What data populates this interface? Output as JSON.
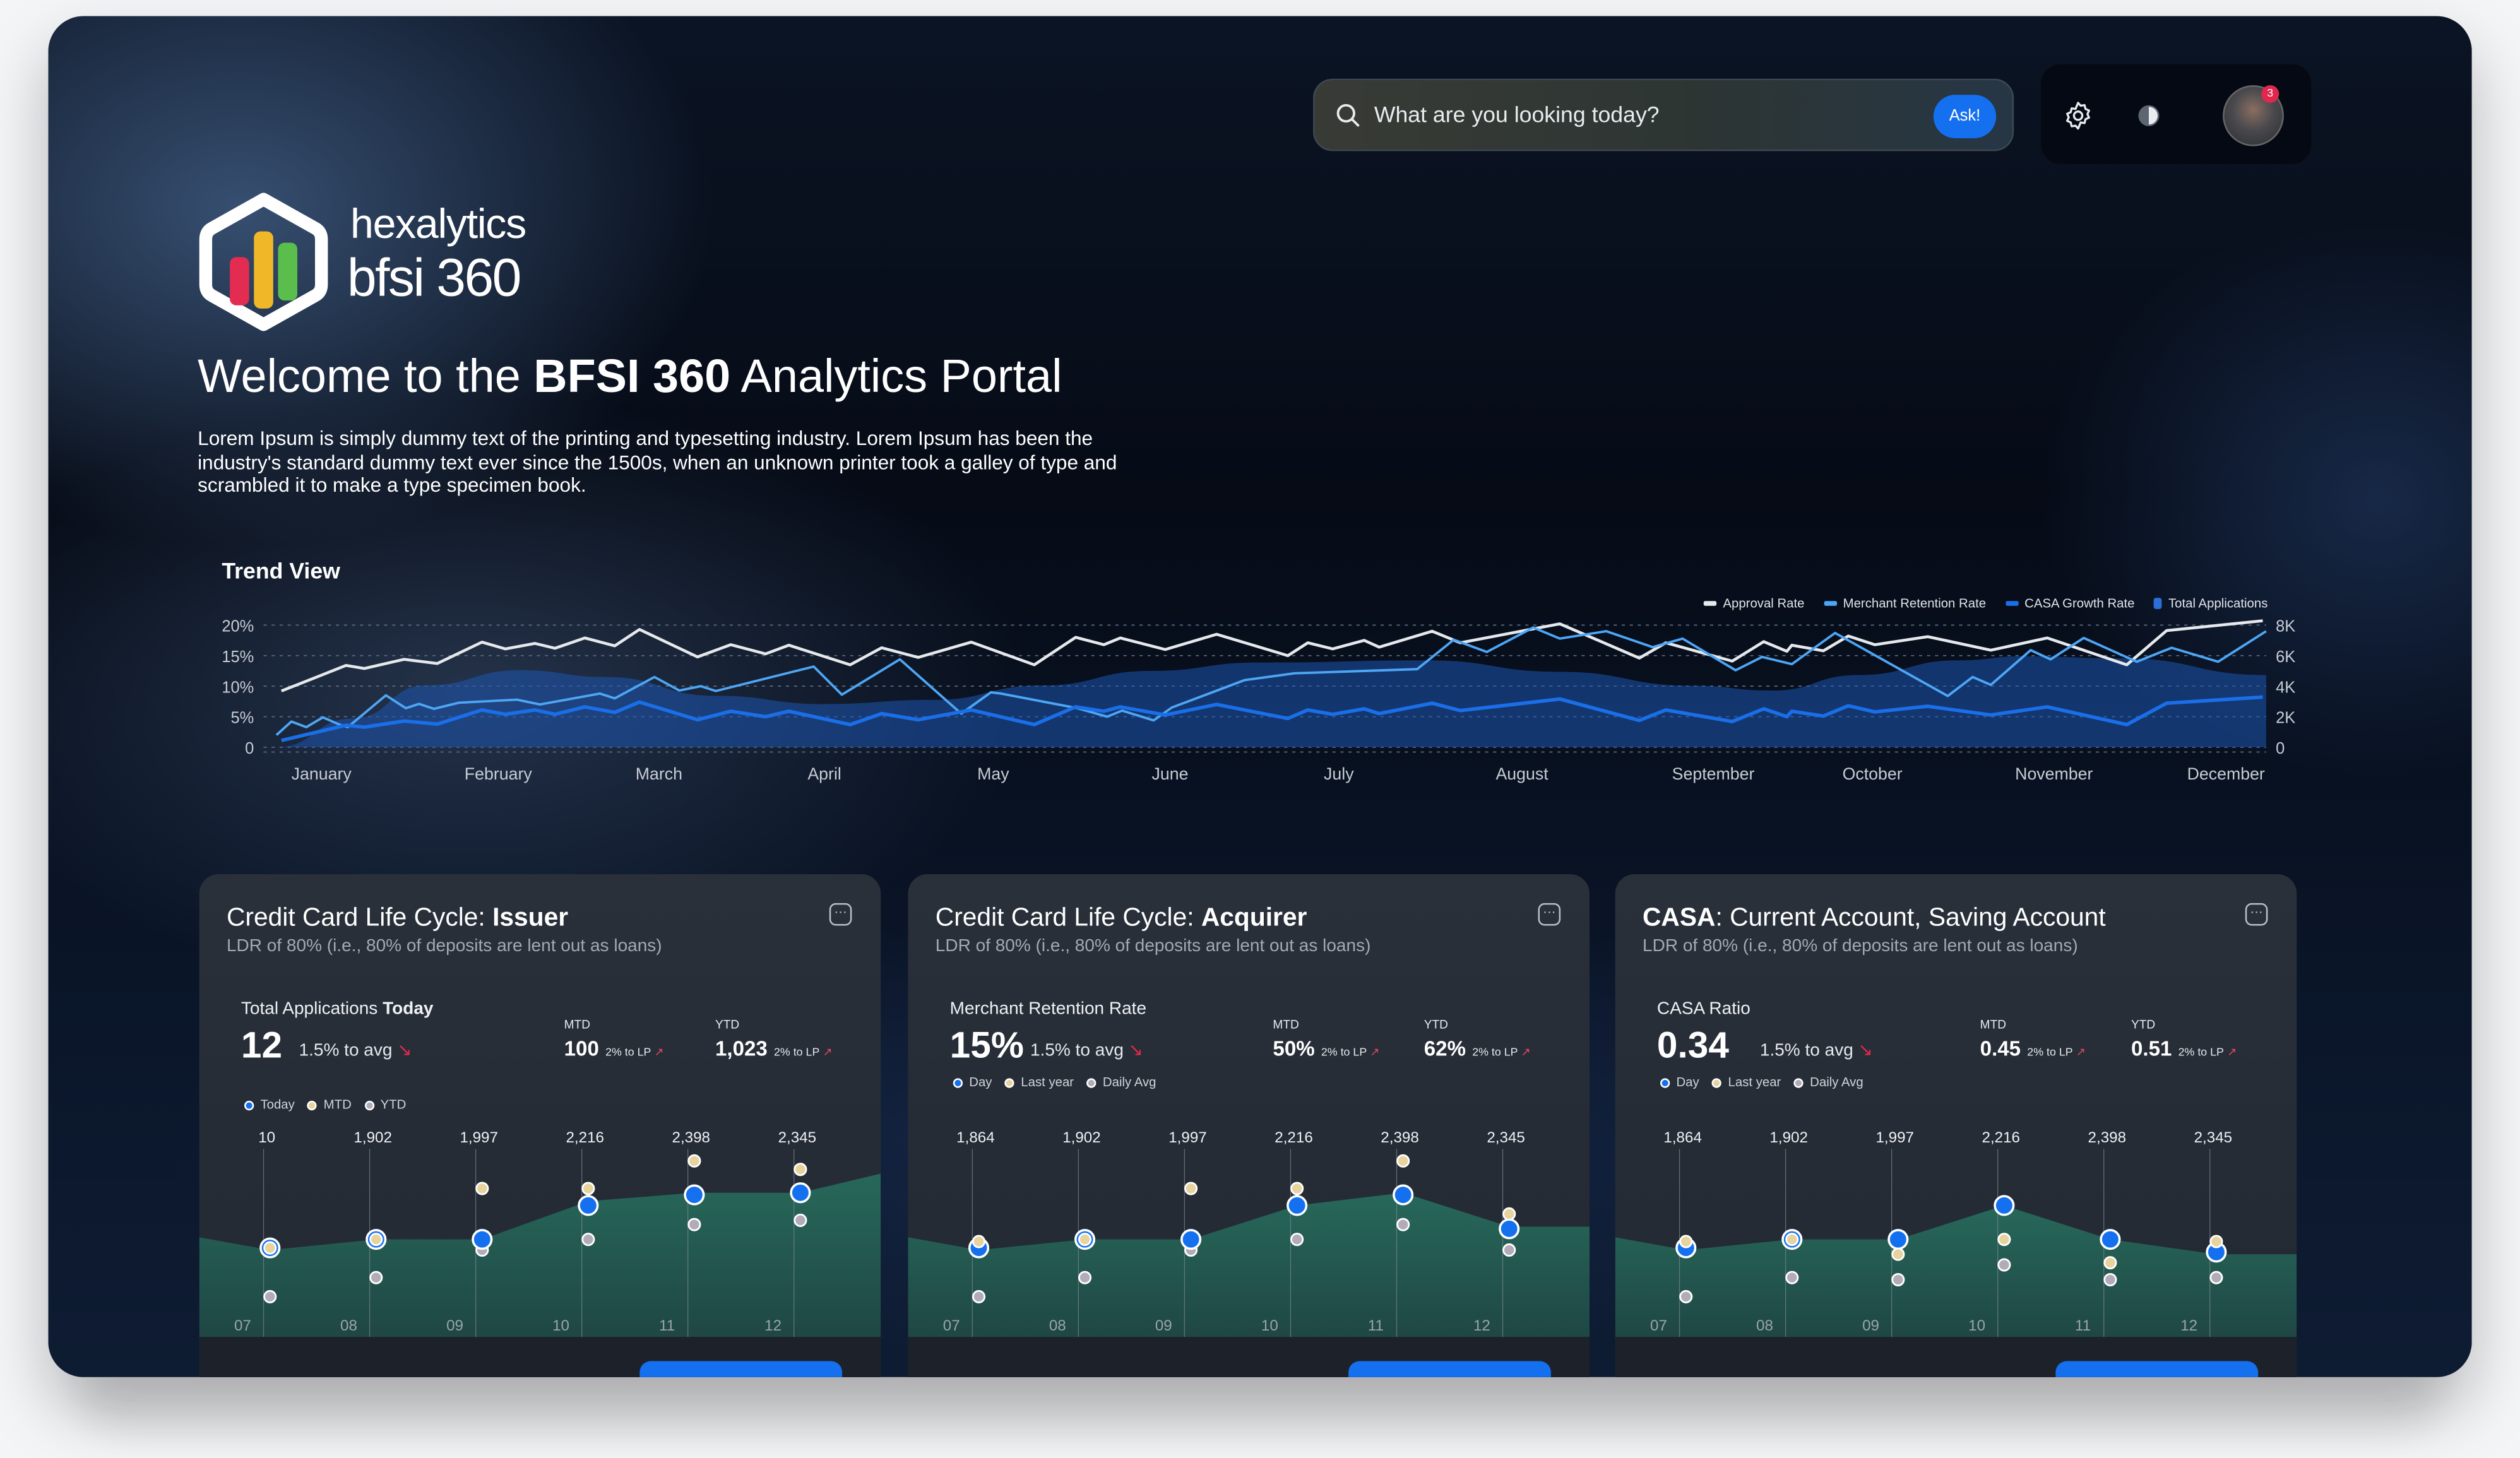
{
  "header": {
    "search_placeholder": "What are you looking today?",
    "ask_label": "Ask!",
    "notification_count": "3",
    "icons": [
      "search-icon",
      "gear-icon",
      "contrast-icon",
      "user-avatar"
    ]
  },
  "brand": {
    "line1": "hexalytics",
    "line2": "bfsi 360"
  },
  "hero": {
    "title_prefix": "Welcome to the ",
    "title_bold": "BFSI 360",
    "title_suffix": " Analytics Portal",
    "description": "Lorem Ipsum is simply dummy text of the printing and typesetting industry. Lorem Ipsum has been the industry's standard dummy text ever since the 1500s, when an unknown printer took a galley of type and scrambled it to make a type specimen book."
  },
  "trend": {
    "title": "Trend View"
  },
  "colors": {
    "accent": "#1570ef",
    "approval": "#e6e9ec",
    "merchant": "#4da6f5",
    "casa": "#1a6fe8",
    "total": "#1e4f9a",
    "negative": "#e0284e",
    "card_area": "#245d50",
    "dot_mtd": "#e7d39d",
    "dot_ytd": "#b2acb8"
  },
  "chart_data": {
    "type": "line",
    "title": "Trend View",
    "x_labels": [
      "January",
      "February",
      "March",
      "April",
      "May",
      "June",
      "July",
      "August",
      "September",
      "October",
      "November",
      "December"
    ],
    "x_unit": "month index (0 = start of January, 12 = end of December)",
    "xlim": [
      0,
      12
    ],
    "y_left": {
      "ticks": [
        "20%",
        "15%",
        "10%",
        "5%",
        "0"
      ],
      "lim": [
        0,
        20
      ],
      "unit": "%"
    },
    "y_right": {
      "ticks": [
        "8K",
        "6K",
        "4K",
        "2K",
        "0"
      ],
      "lim": [
        0,
        8
      ],
      "unit": "K"
    },
    "grid": true,
    "legend_position": "top-right",
    "legend": [
      "Approval Rate",
      "Merchant Retention Rate",
      "CASA Growth Rate",
      "Total Applications"
    ],
    "series": [
      {
        "name": "Approval Rate",
        "type": "line",
        "axis": "left",
        "points": [
          [
            0.03,
            9.2
          ],
          [
            0.42,
            13.4
          ],
          [
            0.53,
            12.9
          ],
          [
            0.77,
            14.4
          ],
          [
            0.97,
            13.7
          ],
          [
            1.24,
            17.2
          ],
          [
            1.38,
            16.1
          ],
          [
            1.56,
            17.0
          ],
          [
            1.68,
            16.2
          ],
          [
            1.86,
            17.9
          ],
          [
            2.04,
            16.6
          ],
          [
            2.19,
            19.3
          ],
          [
            2.54,
            14.8
          ],
          [
            2.74,
            16.8
          ],
          [
            2.95,
            15.3
          ],
          [
            3.09,
            16.7
          ],
          [
            3.46,
            13.5
          ],
          [
            3.65,
            16.3
          ],
          [
            3.87,
            14.7
          ],
          [
            4.19,
            17.2
          ],
          [
            4.57,
            13.5
          ],
          [
            4.82,
            18.0
          ],
          [
            4.99,
            16.8
          ],
          [
            5.09,
            17.9
          ],
          [
            5.36,
            16.0
          ],
          [
            5.67,
            18.5
          ],
          [
            6.1,
            15.0
          ],
          [
            6.22,
            17.1
          ],
          [
            6.37,
            16.1
          ],
          [
            6.56,
            17.5
          ],
          [
            6.65,
            16.4
          ],
          [
            6.97,
            19.0
          ],
          [
            7.14,
            17.1
          ],
          [
            7.74,
            20.2
          ],
          [
            8.22,
            14.6
          ],
          [
            8.38,
            17.1
          ],
          [
            8.78,
            14.1
          ],
          [
            8.97,
            17.3
          ],
          [
            9.11,
            15.7
          ],
          [
            9.14,
            16.7
          ],
          [
            9.33,
            15.8
          ],
          [
            9.48,
            18.2
          ],
          [
            9.64,
            16.8
          ],
          [
            9.96,
            18.1
          ],
          [
            10.34,
            15.9
          ],
          [
            10.68,
            17.9
          ],
          [
            11.16,
            13.5
          ],
          [
            11.4,
            19.1
          ],
          [
            11.98,
            20.7
          ]
        ]
      },
      {
        "name": "Merchant Retention Rate",
        "type": "line",
        "axis": "left",
        "points": [
          [
            0.0,
            2.0
          ],
          [
            0.09,
            4.2
          ],
          [
            0.18,
            3.3
          ],
          [
            0.28,
            4.9
          ],
          [
            0.38,
            3.7
          ],
          [
            0.43,
            3.3
          ],
          [
            0.66,
            8.5
          ],
          [
            0.78,
            6.4
          ],
          [
            0.86,
            7.1
          ],
          [
            0.95,
            6.3
          ],
          [
            1.1,
            7.3
          ],
          [
            1.45,
            7.8
          ],
          [
            1.59,
            7.0
          ],
          [
            1.95,
            8.8
          ],
          [
            2.04,
            8.0
          ],
          [
            2.28,
            11.5
          ],
          [
            2.43,
            9.3
          ],
          [
            2.56,
            10.0
          ],
          [
            2.65,
            9.2
          ],
          [
            3.24,
            13.2
          ],
          [
            3.41,
            8.6
          ],
          [
            3.76,
            14.4
          ],
          [
            4.13,
            5.5
          ],
          [
            4.31,
            9.0
          ],
          [
            4.37,
            8.8
          ],
          [
            4.83,
            6.4
          ],
          [
            5.01,
            5.0
          ],
          [
            5.1,
            6.0
          ],
          [
            5.29,
            4.4
          ],
          [
            5.4,
            6.5
          ],
          [
            5.84,
            11.0
          ],
          [
            6.14,
            12.1
          ],
          [
            6.88,
            12.8
          ],
          [
            7.1,
            17.6
          ],
          [
            7.3,
            15.6
          ],
          [
            7.58,
            19.6
          ],
          [
            7.74,
            17.8
          ],
          [
            8.02,
            19.0
          ],
          [
            8.3,
            16.4
          ],
          [
            8.48,
            17.8
          ],
          [
            8.8,
            12.6
          ],
          [
            8.96,
            14.8
          ],
          [
            9.14,
            13.6
          ],
          [
            9.4,
            18.7
          ],
          [
            10.08,
            8.4
          ],
          [
            10.23,
            11.5
          ],
          [
            10.34,
            10.2
          ],
          [
            10.58,
            15.9
          ],
          [
            10.7,
            14.4
          ],
          [
            10.9,
            17.9
          ],
          [
            11.22,
            14.0
          ],
          [
            11.43,
            16.3
          ],
          [
            11.71,
            14.0
          ],
          [
            12.0,
            19.0
          ]
        ]
      },
      {
        "name": "CASA Growth Rate",
        "type": "line",
        "axis": "left",
        "points": [
          [
            0.03,
            1.1
          ],
          [
            0.42,
            3.6
          ],
          [
            0.53,
            3.3
          ],
          [
            0.77,
            4.3
          ],
          [
            0.97,
            3.8
          ],
          [
            1.24,
            6.1
          ],
          [
            1.38,
            5.4
          ],
          [
            1.56,
            6.1
          ],
          [
            1.68,
            5.4
          ],
          [
            1.86,
            6.6
          ],
          [
            2.04,
            5.7
          ],
          [
            2.19,
            7.4
          ],
          [
            2.54,
            4.5
          ],
          [
            2.74,
            5.9
          ],
          [
            2.95,
            5.0
          ],
          [
            3.09,
            5.9
          ],
          [
            3.46,
            3.7
          ],
          [
            3.65,
            5.5
          ],
          [
            3.87,
            4.5
          ],
          [
            4.19,
            6.1
          ],
          [
            4.57,
            3.7
          ],
          [
            4.82,
            6.6
          ],
          [
            4.99,
            5.9
          ],
          [
            5.09,
            6.6
          ],
          [
            5.36,
            5.3
          ],
          [
            5.67,
            7.0
          ],
          [
            6.1,
            4.7
          ],
          [
            6.22,
            6.1
          ],
          [
            6.37,
            5.4
          ],
          [
            6.56,
            6.3
          ],
          [
            6.65,
            5.5
          ],
          [
            6.97,
            7.2
          ],
          [
            7.14,
            6.0
          ],
          [
            7.74,
            7.9
          ],
          [
            8.22,
            4.4
          ],
          [
            8.38,
            6.1
          ],
          [
            8.78,
            4.2
          ],
          [
            8.97,
            6.3
          ],
          [
            9.11,
            5.0
          ],
          [
            9.14,
            5.9
          ],
          [
            9.33,
            5.1
          ],
          [
            9.48,
            6.8
          ],
          [
            9.64,
            5.8
          ],
          [
            9.96,
            6.7
          ],
          [
            10.34,
            5.3
          ],
          [
            10.68,
            6.6
          ],
          [
            11.16,
            3.7
          ],
          [
            11.4,
            7.2
          ],
          [
            11.98,
            8.2
          ]
        ]
      },
      {
        "name": "Total Applications",
        "type": "area",
        "axis": "right",
        "points": [
          [
            0,
            0
          ],
          [
            0.46,
            1.88
          ],
          [
            0.9,
            4.05
          ],
          [
            1.47,
            5.05
          ],
          [
            1.99,
            4.6
          ],
          [
            2.65,
            3.37
          ],
          [
            3.3,
            2.83
          ],
          [
            3.96,
            3.1
          ],
          [
            4.62,
            4.05
          ],
          [
            5.27,
            5.0
          ],
          [
            5.93,
            5.55
          ],
          [
            6.94,
            5.69
          ],
          [
            7.74,
            4.94
          ],
          [
            8.54,
            4.03
          ],
          [
            9.02,
            3.71
          ],
          [
            9.54,
            4.73
          ],
          [
            10.14,
            5.69
          ],
          [
            10.54,
            5.96
          ],
          [
            11.14,
            5.82
          ],
          [
            12.0,
            4.73
          ]
        ]
      }
    ]
  },
  "cards": [
    {
      "title_parts": [
        {
          "text": "Credit Card Life Cycle: ",
          "bold": false
        },
        {
          "text": "Issuer",
          "bold": true
        }
      ],
      "subtitle": "LDR of 80% (i.e., 80% of deposits are lent out as loans)",
      "metric_label_parts": [
        {
          "text": "Total Applications ",
          "bold": false
        },
        {
          "text": "Today",
          "bold": true
        }
      ],
      "value": "12",
      "vs_avg": "1.5% to avg",
      "mtd_label": "MTD",
      "mtd_value": "100",
      "mtd_change": "2% to LP",
      "ytd_label": "YTD",
      "ytd_value": "1,023",
      "ytd_change": "2% to LP",
      "legend": [
        "Today",
        "MTD",
        "YTD"
      ],
      "chart": {
        "x_labels": [
          "07",
          "08",
          "09",
          "10",
          "11",
          "12"
        ],
        "value_labels": [
          "10",
          "1,902",
          "1,997",
          "2,216",
          "2,398",
          "2,345"
        ],
        "series_levels": {
          "primary": [
            42,
            46,
            46,
            62,
            67,
            68
          ],
          "secondary": [
            42,
            46,
            70,
            70,
            83,
            79
          ],
          "tertiary": [
            19,
            28,
            41,
            46,
            53,
            55
          ]
        },
        "area_levels": [
          47,
          41,
          46,
          46,
          64,
          68,
          68,
          77
        ]
      }
    },
    {
      "title_parts": [
        {
          "text": "Credit Card Life Cycle: ",
          "bold": false
        },
        {
          "text": "Acquirer",
          "bold": true
        }
      ],
      "subtitle": "LDR of 80% (i.e., 80% of deposits are lent out as loans)",
      "metric_label_parts": [
        {
          "text": "Merchant Retention Rate",
          "bold": false
        }
      ],
      "value": "15%",
      "vs_avg": "1.5% to avg",
      "mtd_label": "MTD",
      "mtd_value": "50%",
      "mtd_change": "2% to LP",
      "ytd_label": "YTD",
      "ytd_value": "62%",
      "ytd_change": "2% to LP",
      "legend": [
        "Day",
        "Last year",
        "Daily Avg"
      ],
      "chart": {
        "x_labels": [
          "07",
          "08",
          "09",
          "10",
          "11",
          "12"
        ],
        "value_labels": [
          "1,864",
          "1,902",
          "1,997",
          "2,216",
          "2,398",
          "2,345"
        ],
        "series_levels": {
          "primary": [
            42,
            46,
            46,
            62,
            67,
            51
          ],
          "secondary": [
            45,
            46,
            70,
            70,
            83,
            58
          ],
          "tertiary": [
            19,
            28,
            41,
            46,
            53,
            41
          ]
        },
        "area_levels": [
          47,
          41,
          46,
          46,
          62,
          68,
          52,
          52
        ]
      }
    },
    {
      "title_parts": [
        {
          "text": "CASA",
          "bold": true
        },
        {
          "text": ": Current Account, Saving Account",
          "bold": false
        }
      ],
      "subtitle": "LDR of 80% (i.e., 80% of deposits are lent out as loans)",
      "metric_label_parts": [
        {
          "text": "CASA Ratio",
          "bold": false
        }
      ],
      "value": "0.34",
      "vs_avg": "1.5% to avg",
      "mtd_label": "MTD",
      "mtd_value": "0.45",
      "mtd_change": "2% to LP",
      "ytd_label": "YTD",
      "ytd_value": "0.51",
      "ytd_change": "2% to LP",
      "legend": [
        "Day",
        "Last year",
        "Daily Avg"
      ],
      "chart": {
        "x_labels": [
          "07",
          "08",
          "09",
          "10",
          "11",
          "12"
        ],
        "value_labels": [
          "1,864",
          "1,902",
          "1,997",
          "2,216",
          "2,398",
          "2,345"
        ],
        "series_levels": {
          "primary": [
            42,
            46,
            46,
            62,
            46,
            40
          ],
          "secondary": [
            45,
            46,
            39,
            46,
            35,
            45
          ],
          "tertiary": [
            19,
            28,
            27,
            34,
            27,
            28
          ]
        },
        "area_levels": [
          47,
          41,
          46,
          46,
          62,
          46,
          39,
          39
        ]
      }
    }
  ]
}
